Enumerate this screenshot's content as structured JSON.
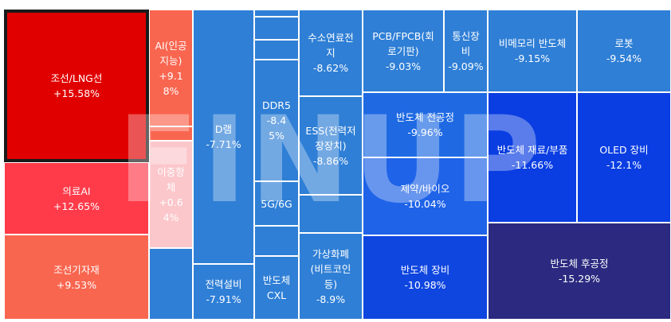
{
  "chart_data": {
    "type": "treemap",
    "tiles": [
      {
        "id": "shipbuilding-lng",
        "name": "조선/LNG선",
        "value": "+15.58%",
        "display": "조선/LNG선\n+15.58%",
        "color": "#e10000",
        "selected": true
      },
      {
        "id": "medical-ai",
        "name": "의료AI",
        "value": "+12.65%",
        "display": "의료AI\n+12.65%",
        "color": "#ff3b4a"
      },
      {
        "id": "shipbuilding-equipment",
        "name": "조선기자재",
        "value": "+9.53%",
        "display": "조선기자재\n+9.53%",
        "color": "#f96650"
      },
      {
        "id": "ai-artificial-intelligence",
        "name": "AI(인공지능)",
        "value": "+9.18%",
        "display": "AI(인공\n지능)\n+9.1\n8%",
        "color": "#f96650"
      },
      {
        "id": "blank-warm-1",
        "name": "",
        "value": "",
        "display": "",
        "color": "#f96650"
      },
      {
        "id": "dual-listing",
        "name": "이중항체",
        "value": "+0.64%",
        "display": "이중항\n체\n+0.6\n4%",
        "color": "#fbc7cb"
      },
      {
        "id": "blank-blue-left",
        "name": "",
        "value": "",
        "display": "",
        "color": "#2f7fd6"
      },
      {
        "id": "d-ram",
        "name": "D램",
        "value": "-7.71%",
        "display": "D램\n-7.71%",
        "color": "#2f7fd6"
      },
      {
        "id": "power-equipment",
        "name": "전력설비",
        "value": "-7.91%",
        "display": "전력설비\n-7.91%",
        "color": "#2f7fd6"
      },
      {
        "id": "blank-blue-1",
        "name": "",
        "value": "",
        "display": "",
        "color": "#2f7fd6"
      },
      {
        "id": "blank-blue-2",
        "name": "",
        "value": "",
        "display": "",
        "color": "#2f7fd6"
      },
      {
        "id": "blank-blue-3",
        "name": "",
        "value": "",
        "display": "",
        "color": "#2f7fd6"
      },
      {
        "id": "ddr5",
        "name": "DDR5",
        "value": "-8.45%",
        "display": "DDR5\n-8.4\n5%",
        "color": "#2f7fd6"
      },
      {
        "id": "5g-6g",
        "name": "5G/6G",
        "value": "",
        "display": "5G/6G",
        "color": "#2f7fd6"
      },
      {
        "id": "blank-blue-4",
        "name": "",
        "value": "",
        "display": "",
        "color": "#2f7fd6"
      },
      {
        "id": "semi-cxl",
        "name": "반도체 CXL",
        "value": "",
        "display": "반도체\nCXL",
        "color": "#2f7fd6"
      },
      {
        "id": "hydrogen-fuel-cell",
        "name": "수소연료전지",
        "value": "-8.62%",
        "display": "수소연료전\n지\n-8.62%",
        "color": "#2f7fd6"
      },
      {
        "id": "ess",
        "name": "ESS(전력저장장치)",
        "value": "-8.86%",
        "display": "ESS(전력저\n장장치)\n-8.86%",
        "color": "#2f7fd6"
      },
      {
        "id": "blank-blue-5",
        "name": "",
        "value": "",
        "display": "",
        "color": "#2f7fd6"
      },
      {
        "id": "crypto",
        "name": "가상화폐(비트코인 등)",
        "value": "-8.9%",
        "display": "가상화폐\n(비트코인\n등)\n-8.9%",
        "color": "#2f7fd6"
      },
      {
        "id": "pcb",
        "name": "PCB/FPCB(회로기판)",
        "value": "-9.03%",
        "display": "PCB/FPCB(회\n로기판)\n-9.03%",
        "color": "#2f7fd6"
      },
      {
        "id": "telecom-equipment",
        "name": "통신장비",
        "value": "-9.09%",
        "display": "통신장\n비\n-9.09%",
        "color": "#2f7fd6"
      },
      {
        "id": "non-memory",
        "name": "비메모리 반도체",
        "value": "-9.15%",
        "display": "비메모리 반도체\n-9.15%",
        "color": "#2f7fd6"
      },
      {
        "id": "robot",
        "name": "로봇",
        "value": "-9.54%",
        "display": "로봇\n-9.54%",
        "color": "#2f7fd6"
      },
      {
        "id": "semi-front-end",
        "name": "반도체 전공정",
        "value": "-9.96%",
        "display": "반도체 전공정\n-9.96%",
        "color": "#1f6ae3"
      },
      {
        "id": "pharma-bio",
        "name": "제약/바이오",
        "value": "-10.04%",
        "display": "제약/바이오\n-10.04%",
        "color": "#1f63e8"
      },
      {
        "id": "semi-equipment",
        "name": "반도체 장비",
        "value": "-10.98%",
        "display": "반도체 장비\n-10.98%",
        "color": "#0f46e0"
      },
      {
        "id": "semi-materials-parts",
        "name": "반도체 재료/부품",
        "value": "-11.66%",
        "display": "반도체 재료/부품\n-11.66%",
        "color": "#0a3ee2"
      },
      {
        "id": "oled-equipment",
        "name": "OLED 장비",
        "value": "-12.1%",
        "display": "OLED 장비\n-12.1%",
        "color": "#0a3ee2"
      },
      {
        "id": "semi-back-end",
        "name": "반도체 후공정",
        "value": "-15.29%",
        "display": "반도체 후공정\n-15.29%",
        "color": "#2b2a80"
      }
    ]
  },
  "watermark": "FINUP"
}
